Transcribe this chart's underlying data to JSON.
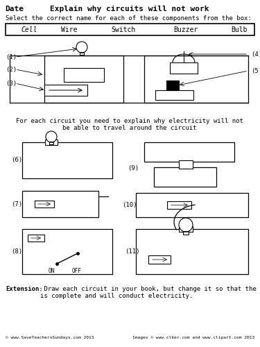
{
  "title": "Explain why circuits will not work",
  "date_label": "Date",
  "subtitle": "Select the correct name for each of these components from the box:",
  "box_items": [
    "Cell",
    "Wire",
    "Switch",
    "Buzzer",
    "Bulb"
  ],
  "middle_text_line1": "For each circuit you need to explain why electricity will not",
  "middle_text_line2": "be able to travel around the circuit",
  "extension_bold": "Extension:",
  "extension_text": " Draw each circuit in your book, but change it so that the circuit\nis complete and will conduct electricity.",
  "footer_left": "© www.SaveTeachersSundays.com 2013",
  "footer_right": "Images © www.clker.com and www.clipart.com 2013",
  "bg_color": "#ffffff"
}
